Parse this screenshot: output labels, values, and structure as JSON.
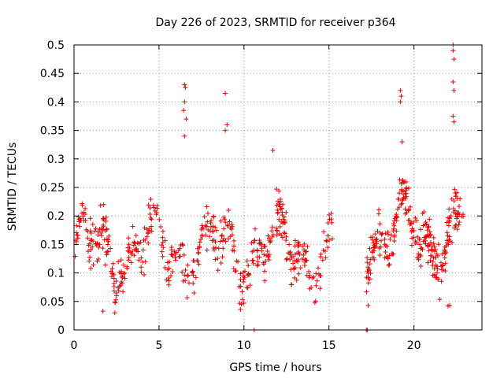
{
  "chart_data": {
    "type": "scatter",
    "title": "Day 226 of 2023, SRMTID for receiver p364",
    "xlabel": "GPS time / hours",
    "ylabel": "SRMTID / TECUs",
    "xlim": [
      0,
      24
    ],
    "ylim": [
      0,
      0.5
    ],
    "xticks": [
      0,
      5,
      10,
      15,
      20
    ],
    "xtick_labels": [
      "0",
      "5",
      "10",
      "15",
      "20"
    ],
    "yticks": [
      0,
      0.05,
      0.1,
      0.15,
      0.2,
      0.25,
      0.3,
      0.35,
      0.4,
      0.45,
      0.5
    ],
    "ytick_labels": [
      "0",
      "0.05",
      "0.1",
      "0.15",
      "0.2",
      "0.25",
      "0.3",
      "0.35",
      "0.4",
      "0.45",
      "0.5"
    ],
    "grid": true,
    "marker": "+",
    "color": "#ee0000",
    "series": [
      {
        "name": "SRMTID",
        "segments": [
          {
            "x_start": 0.0,
            "x_end": 15.2,
            "y_base": 0.14,
            "y_spread": 0.07,
            "n": 520
          },
          {
            "x_start": 17.2,
            "x_end": 22.9,
            "y_base": 0.17,
            "y_spread": 0.07,
            "n": 280
          }
        ],
        "highlights": [
          {
            "x": 6.5,
            "y": 0.43
          },
          {
            "x": 6.55,
            "y": 0.425
          },
          {
            "x": 6.5,
            "y": 0.4
          },
          {
            "x": 6.45,
            "y": 0.385
          },
          {
            "x": 6.6,
            "y": 0.37
          },
          {
            "x": 6.5,
            "y": 0.34
          },
          {
            "x": 8.9,
            "y": 0.415
          },
          {
            "x": 9.0,
            "y": 0.36
          },
          {
            "x": 8.9,
            "y": 0.35
          },
          {
            "x": 11.7,
            "y": 0.315
          },
          {
            "x": 19.2,
            "y": 0.42
          },
          {
            "x": 19.25,
            "y": 0.41
          },
          {
            "x": 19.2,
            "y": 0.4
          },
          {
            "x": 19.3,
            "y": 0.33
          },
          {
            "x": 22.3,
            "y": 0.5
          },
          {
            "x": 22.3,
            "y": 0.49
          },
          {
            "x": 22.35,
            "y": 0.475
          },
          {
            "x": 22.3,
            "y": 0.435
          },
          {
            "x": 22.35,
            "y": 0.42
          },
          {
            "x": 22.3,
            "y": 0.375
          },
          {
            "x": 22.35,
            "y": 0.365
          },
          {
            "x": 10.6,
            "y": 0.0
          },
          {
            "x": 17.2,
            "y": 0.0
          },
          {
            "x": 17.25,
            "y": 0.0
          },
          {
            "x": 17.3,
            "y": 0.043
          },
          {
            "x": 22.0,
            "y": 0.042
          },
          {
            "x": 22.1,
            "y": 0.043
          },
          {
            "x": 2.4,
            "y": 0.03
          },
          {
            "x": 1.7,
            "y": 0.033
          }
        ]
      }
    ]
  }
}
